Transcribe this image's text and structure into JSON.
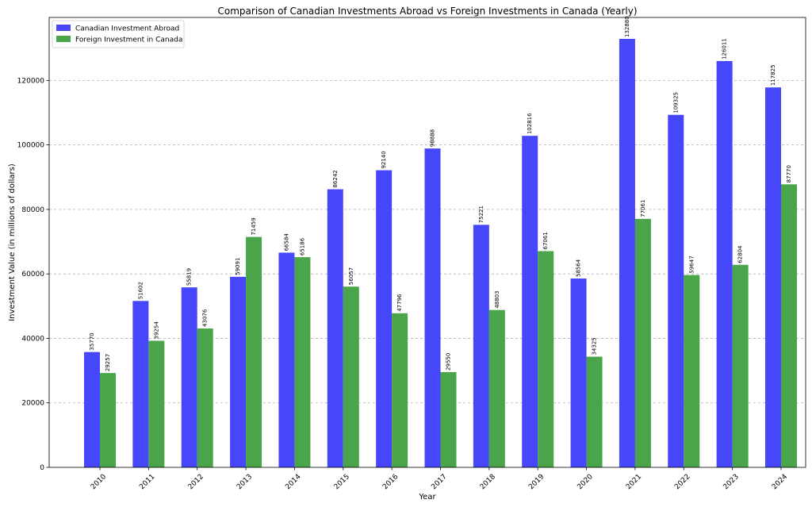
{
  "chart_data": {
    "type": "bar",
    "title": "Comparison of Canadian Investments Abroad vs Foreign Investments in Canada (Yearly)",
    "xlabel": "Year",
    "ylabel": "Investment Value (in millions of dollars)",
    "categories": [
      "2010",
      "2011",
      "2012",
      "2013",
      "2014",
      "2015",
      "2016",
      "2017",
      "2018",
      "2019",
      "2020",
      "2021",
      "2022",
      "2023",
      "2024"
    ],
    "series": [
      {
        "name": "Canadian Investment Abroad",
        "color": "#4646fa",
        "values": [
          35770,
          51602,
          55819,
          59091,
          66584,
          86242,
          92140,
          98888,
          75221,
          102816,
          58564,
          132880,
          109325,
          126011,
          117825
        ]
      },
      {
        "name": "Foreign Investment in Canada",
        "color": "#4aa54a",
        "values": [
          29257,
          39254,
          43076,
          71459,
          65186,
          56057,
          47796,
          29550,
          48803,
          67061,
          34325,
          77061,
          59647,
          62804,
          87770
        ]
      }
    ],
    "ylim": [
      0,
      139524
    ],
    "yticks": [
      0,
      20000,
      40000,
      60000,
      80000,
      100000,
      120000
    ],
    "grid": "y-dashed",
    "legend_position": "top-left"
  }
}
